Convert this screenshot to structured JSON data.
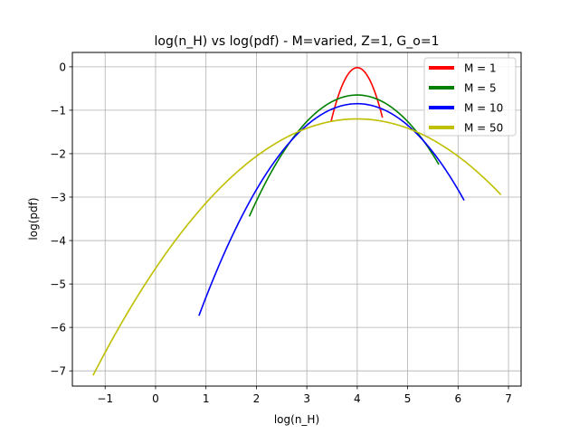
{
  "chart_data": {
    "type": "line",
    "title": "log(n_H) vs log(pdf) - M=varied, Z=1, G_o=1",
    "xlabel": "log(n_H)",
    "ylabel": "log(pdf)",
    "xlim": [
      -1.65,
      7.25
    ],
    "ylim": [
      -7.35,
      0.33
    ],
    "xticks": [
      -1,
      0,
      1,
      2,
      3,
      4,
      5,
      6,
      7
    ],
    "yticks": [
      0,
      -1,
      -2,
      -3,
      -4,
      -5,
      -6,
      -7
    ],
    "grid": true,
    "legend_position": "top-right",
    "series": [
      {
        "name": "M = 1",
        "color": "#ff0000",
        "mu": 4.0,
        "peak": -0.02,
        "k": 4.6,
        "x_range": [
          3.48,
          4.5
        ]
      },
      {
        "name": "M = 5",
        "color": "#008000",
        "mu": 4.0,
        "peak": -0.65,
        "k": 0.61,
        "x_range": [
          1.86,
          5.62
        ]
      },
      {
        "name": "M = 10",
        "color": "#0000ff",
        "mu": 4.0,
        "peak": -0.85,
        "k": 0.495,
        "x_range": [
          0.86,
          6.12
        ]
      },
      {
        "name": "M = 50",
        "color": "#bfbf00",
        "mu": 4.0,
        "peak": -1.2,
        "k": 0.215,
        "x_range": [
          -1.24,
          6.85
        ]
      }
    ]
  }
}
